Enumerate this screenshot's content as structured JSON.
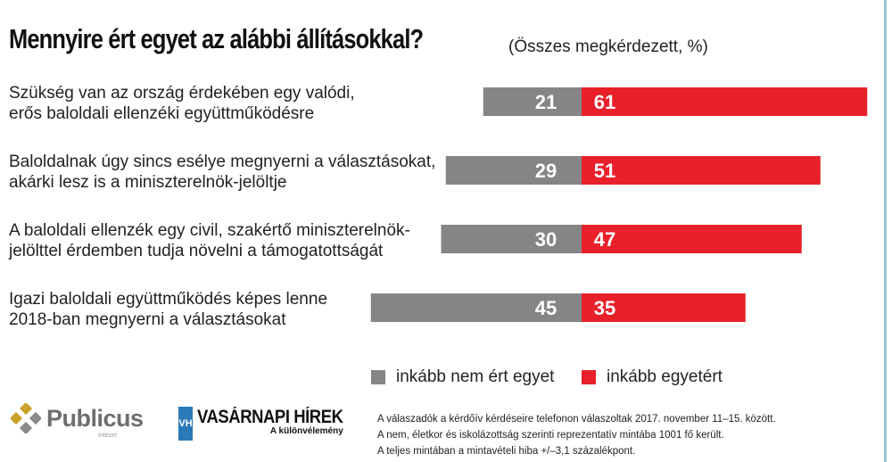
{
  "header": {
    "title": "Mennyire ért egyet az alábbi állításokkal?",
    "subtitle": "(Összes megkérdezett, %)"
  },
  "chart_data": {
    "type": "bar",
    "orientation": "horizontal-diverging",
    "categories": [
      [
        "Szükség van az ország érdekében egy valódi,",
        "erős baloldali ellenzéki együttműködésre"
      ],
      [
        "Baloldalnak úgy sincs esélye megnyerni a választásokat,",
        "akárki lesz is a miniszterelnök-jelöltje"
      ],
      [
        "A baloldali ellenzék egy civil, szakértő miniszterelnök-",
        "jelölttel érdemben tudja növelni a támogatottságát"
      ],
      [
        "Igazi baloldali együttműködés képes lenne",
        "2018-ban megnyerni a választásokat"
      ]
    ],
    "series": [
      {
        "name": "inkább nem ért egyet",
        "color": "#858585",
        "values": [
          21,
          29,
          30,
          45
        ]
      },
      {
        "name": "inkább egyetért",
        "color": "#e8202a",
        "values": [
          61,
          51,
          47,
          35
        ]
      }
    ],
    "unit": "%",
    "legend_position": "bottom-right"
  },
  "footer": {
    "notes": [
      "A válaszadók a kérdőív kérdéseire telefonon válaszoltak 2017. november 11–15. között.",
      "A nem, életkor és iskolázottság szerinti reprezentatív mintába 1001 fő került.",
      "A teljes mintában a mintavételi hiba +/–3,1 százalékpont."
    ],
    "logo_publicus": "Publicus",
    "logo_publicus_sub": "Intézet",
    "logo_vh_box": "VH",
    "logo_vh": "VASÁRNAPI HÍREK",
    "logo_vh_tag": "A különvélemény"
  }
}
